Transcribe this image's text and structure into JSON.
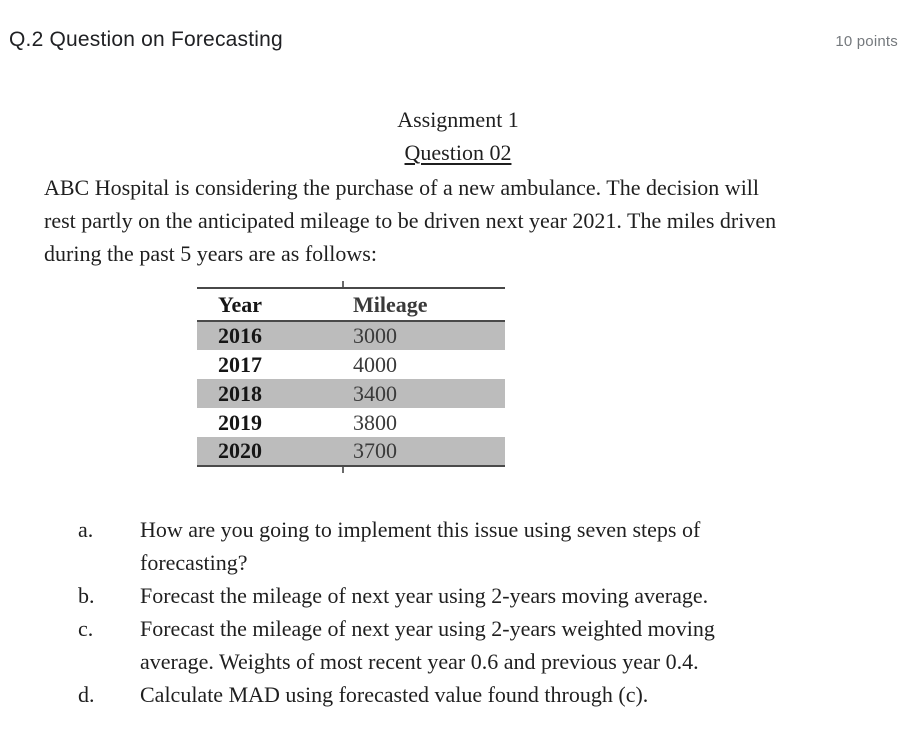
{
  "header": {
    "title": "Q.2 Question on Forecasting",
    "points_label": "10 points"
  },
  "document": {
    "heading": "Assignment 1",
    "subheading": "Question 02",
    "intro_lines": [
      "ABC Hospital is considering the purchase of a new ambulance. The decision will",
      "rest partly on the anticipated mileage to be driven next year 2021. The miles driven",
      "during the past 5 years are as follows:"
    ],
    "table": {
      "columns": [
        "Year",
        "Mileage"
      ],
      "rows": [
        {
          "year": "2016",
          "mileage": "3000"
        },
        {
          "year": "2017",
          "mileage": "4000"
        },
        {
          "year": "2018",
          "mileage": "3400"
        },
        {
          "year": "2019",
          "mileage": "3800"
        },
        {
          "year": "2020",
          "mileage": "3700"
        }
      ]
    },
    "questions": [
      {
        "marker": "a.",
        "lines": [
          "How are you going to implement this issue using seven steps of",
          "forecasting?"
        ]
      },
      {
        "marker": "b.",
        "lines": [
          "Forecast the mileage of next year using 2-years moving average."
        ]
      },
      {
        "marker": "c.",
        "lines": [
          "Forecast the mileage of next year using 2-years weighted moving",
          "average. Weights of most recent year 0.6 and previous year 0.4."
        ]
      },
      {
        "marker": "d.",
        "lines": [
          "Calculate MAD using forecasted value found through (c)."
        ]
      }
    ]
  },
  "colors": {
    "title_text": "#202124",
    "points_text": "#75797d",
    "document_text": "#1f1f1f",
    "table_band": "#bcbcbc",
    "table_border": "#4a4a4a",
    "background": "#ffffff"
  }
}
